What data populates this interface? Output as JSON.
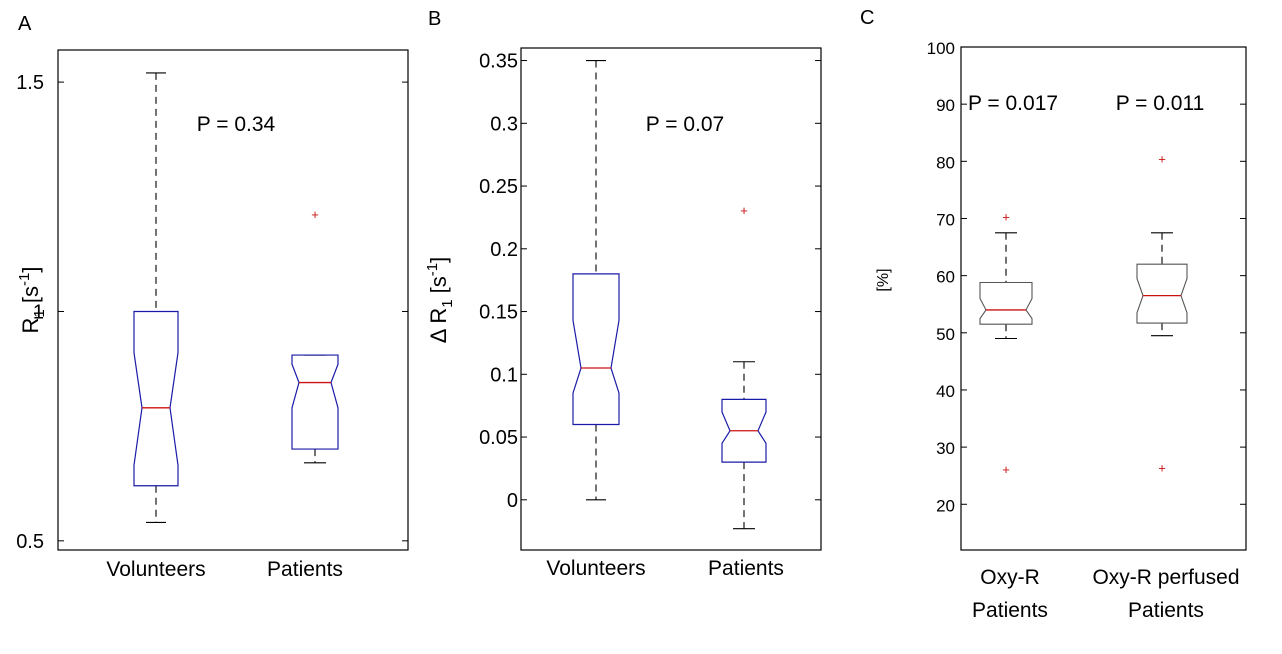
{
  "chart_data": [
    {
      "panel": "A",
      "type": "boxplot",
      "ylabel": "R",
      "ylabel_sub": "1",
      "ylabel_unit": "[s",
      "ylabel_sup": "-1",
      "ylabel_close": "]",
      "ylim": [
        0.48,
        1.57
      ],
      "yticks": [
        0.5,
        1,
        1.5
      ],
      "ytick_labels": [
        "0.5",
        "1",
        "1.5"
      ],
      "annotation": "P = 0.34",
      "categories": [
        "Volunteers",
        "Patients"
      ],
      "boxes": [
        {
          "name": "Volunteers",
          "whisker_low": 0.54,
          "q1": 0.62,
          "notch_low": 0.665,
          "median": 0.79,
          "notch_high": 0.91,
          "q3": 1.0,
          "whisker_high": 1.52,
          "outliers": []
        },
        {
          "name": "Patients",
          "whisker_low": 0.67,
          "q1": 0.7,
          "notch_low": 0.79,
          "median": 0.845,
          "notch_high": 0.885,
          "q3": 0.905,
          "whisker_high": 0.905,
          "outliers": [
            1.21
          ]
        }
      ]
    },
    {
      "panel": "B",
      "type": "boxplot",
      "ylabel": "Δ R",
      "ylabel_sub": "1",
      "ylabel_unit": "[s",
      "ylabel_sup": "-1",
      "ylabel_close": "]",
      "ylim": [
        -0.04,
        0.36
      ],
      "yticks": [
        0,
        0.05,
        0.1,
        0.15,
        0.2,
        0.25,
        0.3,
        0.35
      ],
      "ytick_labels": [
        "0",
        "0.05",
        "0.1",
        "0.15",
        "0.2",
        "0.25",
        "0.3",
        "0.35"
      ],
      "annotation": "P = 0.07",
      "categories": [
        "Volunteers",
        "Patients"
      ],
      "boxes": [
        {
          "name": "Volunteers",
          "whisker_low": 0.0,
          "q1": 0.06,
          "notch_low": 0.085,
          "median": 0.105,
          "notch_high": 0.143,
          "q3": 0.18,
          "whisker_high": 0.35,
          "outliers": []
        },
        {
          "name": "Patients",
          "whisker_low": -0.023,
          "q1": 0.03,
          "notch_low": 0.045,
          "median": 0.055,
          "notch_high": 0.07,
          "q3": 0.08,
          "whisker_high": 0.11,
          "outliers": [
            0.23
          ]
        }
      ]
    },
    {
      "panel": "C",
      "type": "boxplot",
      "ylabel": "[%]",
      "ylim": [
        12,
        100
      ],
      "yticks": [
        20,
        30,
        40,
        50,
        60,
        70,
        80,
        90,
        100
      ],
      "ytick_labels": [
        "20",
        "30",
        "40",
        "50",
        "60",
        "70",
        "80",
        "90",
        "100"
      ],
      "annotations": [
        "P = 0.017",
        "P = 0.011"
      ],
      "categories": [
        [
          "Oxy-R",
          "Patients"
        ],
        [
          "Oxy-R perfused",
          "Patients"
        ]
      ],
      "boxes": [
        {
          "name": "Oxy-R Patients",
          "whisker_low": 49,
          "q1": 51.5,
          "notch_low": 52.5,
          "median": 54,
          "notch_high": 56,
          "q3": 58.8,
          "whisker_high": 67.5,
          "outliers": [
            70.2,
            26
          ]
        },
        {
          "name": "Oxy-R perfused Patients",
          "whisker_low": 49.5,
          "q1": 51.7,
          "notch_low": 53.5,
          "median": 56.5,
          "notch_high": 59.5,
          "q3": 62,
          "whisker_high": 67.5,
          "outliers": [
            80.3,
            26.3
          ]
        }
      ]
    }
  ]
}
